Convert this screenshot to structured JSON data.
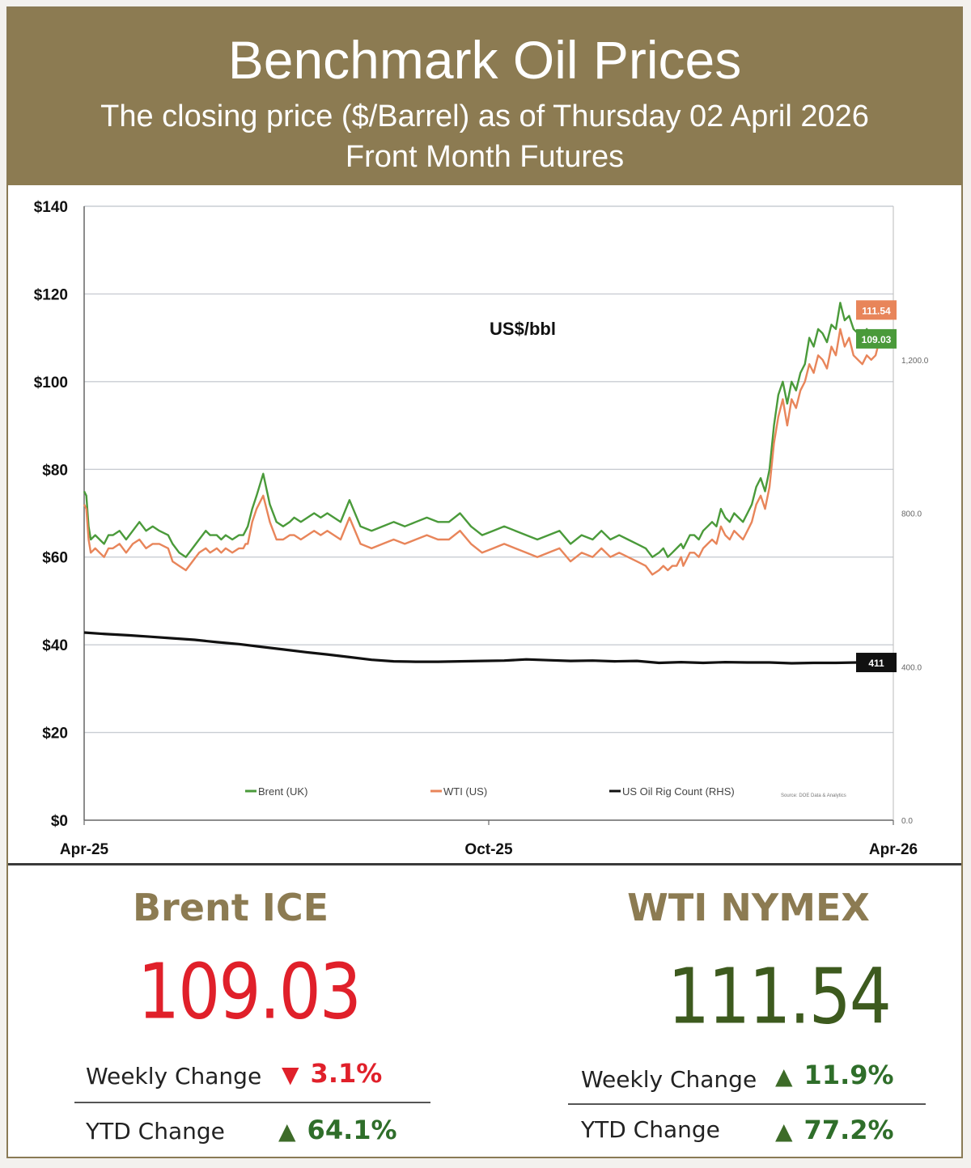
{
  "header": {
    "title": "Benchmark Oil Prices",
    "subtitle": "The closing price ($/Barrel) as of Thursday 02 April 2026",
    "subtitle2": "Front Month  Futures"
  },
  "colors": {
    "header_bg": "#8c7b52",
    "brent": "#4a9a3a",
    "wti": "#e8855a",
    "rig": "#111111",
    "down": "#e0202a",
    "up_price": "#3d5a1e",
    "up_arrow": "#3d6b28",
    "up_text": "#2f6e2a"
  },
  "chart_data": {
    "type": "line",
    "unit_label": "US$/bbl",
    "x_labels": [
      "Apr-25",
      "Oct-25",
      "Apr-26"
    ],
    "y_ticks": [
      "$0",
      "$20",
      "$40",
      "$60",
      "$80",
      "$100",
      "$120",
      "$140"
    ],
    "y_ticks_values": [
      0,
      20,
      40,
      60,
      80,
      100,
      120,
      140
    ],
    "ylim": [
      0,
      140
    ],
    "rhs_ticks": [
      "0.0",
      "400.0",
      "800.0",
      "1,200.0"
    ],
    "rhs_ticks_values": [
      0,
      400,
      800,
      1200
    ],
    "rhs_lim": [
      0,
      1600
    ],
    "grid": true,
    "legend_position": "bottom",
    "source_note": "Source: DOE Data & Analytics",
    "series": [
      {
        "name": "Brent (UK)",
        "axis": "left",
        "end_label": "109.03",
        "x": [
          0,
          1,
          2,
          3,
          5,
          7,
          9,
          11,
          13,
          16,
          19,
          22,
          25,
          28,
          31,
          34,
          38,
          40,
          43,
          46,
          49,
          52,
          55,
          57,
          60,
          62,
          64,
          67,
          70,
          72,
          73,
          74,
          76,
          78,
          81,
          84,
          87,
          90,
          93,
          95,
          98,
          101,
          104,
          107,
          110,
          113,
          116,
          120,
          125,
          130,
          135,
          140,
          145,
          150,
          155,
          160,
          165,
          170,
          175,
          180,
          185,
          190,
          195,
          200,
          205,
          210,
          215,
          220,
          225,
          230,
          234,
          238,
          242,
          246,
          250,
          254,
          257,
          260,
          262,
          264,
          266,
          268,
          270,
          271,
          272,
          273,
          274,
          276,
          278,
          280,
          282,
          284,
          286,
          288,
          290,
          292,
          294,
          296,
          298,
          300,
          302,
          304,
          306,
          308,
          310,
          312,
          314,
          316,
          318,
          320,
          322,
          324,
          326,
          328,
          330,
          332,
          334,
          336,
          338,
          340,
          342,
          344,
          346,
          348,
          350,
          352,
          354,
          356,
          358,
          360,
          362,
          364,
          366
        ],
        "y": [
          75,
          74,
          67,
          64,
          65,
          64,
          63,
          65,
          65,
          66,
          64,
          66,
          68,
          66,
          67,
          66,
          65,
          63,
          61,
          60,
          62,
          64,
          66,
          65,
          65,
          64,
          65,
          64,
          65,
          65,
          66,
          67,
          71,
          74,
          79,
          72,
          68,
          67,
          68,
          69,
          68,
          69,
          70,
          69,
          70,
          69,
          68,
          73,
          67,
          66,
          67,
          68,
          67,
          68,
          69,
          68,
          68,
          70,
          67,
          65,
          66,
          67,
          66,
          65,
          64,
          65,
          66,
          63,
          65,
          64,
          66,
          64,
          65,
          64,
          63,
          62,
          60,
          61,
          62,
          60,
          61,
          62,
          63,
          62,
          63,
          64,
          65,
          65,
          64,
          66,
          67,
          68,
          67,
          71,
          69,
          68,
          70,
          69,
          68,
          70,
          72,
          76,
          78,
          75,
          80,
          90,
          97,
          100,
          95,
          100,
          98,
          102,
          104,
          110,
          108,
          112,
          111,
          109,
          113,
          112,
          118,
          114,
          115,
          112,
          111,
          110,
          112,
          110,
          111,
          109,
          110,
          109,
          109.03
        ]
      },
      {
        "name": "WTI (US)",
        "axis": "left",
        "end_label": "111.54",
        "x": [
          0,
          1,
          2,
          3,
          5,
          7,
          9,
          11,
          13,
          16,
          19,
          22,
          25,
          28,
          31,
          34,
          38,
          40,
          43,
          46,
          49,
          52,
          55,
          57,
          60,
          62,
          64,
          67,
          70,
          72,
          73,
          74,
          76,
          78,
          81,
          84,
          87,
          90,
          93,
          95,
          98,
          101,
          104,
          107,
          110,
          113,
          116,
          120,
          125,
          130,
          135,
          140,
          145,
          150,
          155,
          160,
          165,
          170,
          175,
          180,
          185,
          190,
          195,
          200,
          205,
          210,
          215,
          220,
          225,
          230,
          234,
          238,
          242,
          246,
          250,
          254,
          257,
          260,
          262,
          264,
          266,
          268,
          270,
          271,
          272,
          273,
          274,
          276,
          278,
          280,
          282,
          284,
          286,
          288,
          290,
          292,
          294,
          296,
          298,
          300,
          302,
          304,
          306,
          308,
          310,
          312,
          314,
          316,
          318,
          320,
          322,
          324,
          326,
          328,
          330,
          332,
          334,
          336,
          338,
          340,
          342,
          344,
          346,
          348,
          350,
          352,
          354,
          356,
          358,
          360,
          362,
          364,
          366
        ],
        "y": [
          72,
          71,
          64,
          61,
          62,
          61,
          60,
          62,
          62,
          63,
          61,
          63,
          64,
          62,
          63,
          63,
          62,
          59,
          58,
          57,
          59,
          61,
          62,
          61,
          62,
          61,
          62,
          61,
          62,
          62,
          63,
          63,
          68,
          71,
          74,
          68,
          64,
          64,
          65,
          65,
          64,
          65,
          66,
          65,
          66,
          65,
          64,
          69,
          63,
          62,
          63,
          64,
          63,
          64,
          65,
          64,
          64,
          66,
          63,
          61,
          62,
          63,
          62,
          61,
          60,
          61,
          62,
          59,
          61,
          60,
          62,
          60,
          61,
          60,
          59,
          58,
          56,
          57,
          58,
          57,
          58,
          58,
          60,
          58,
          59,
          60,
          61,
          61,
          60,
          62,
          63,
          64,
          63,
          67,
          65,
          64,
          66,
          65,
          64,
          66,
          68,
          72,
          74,
          71,
          76,
          86,
          92,
          96,
          90,
          96,
          94,
          98,
          100,
          104,
          102,
          106,
          105,
          103,
          108,
          106,
          112,
          108,
          110,
          106,
          105,
          104,
          106,
          105,
          106,
          110,
          111,
          111.54,
          111.54
        ]
      },
      {
        "name": "US Oil Rig Count (RHS)",
        "axis": "right",
        "end_label": "411",
        "x": [
          0,
          10,
          20,
          30,
          40,
          50,
          60,
          70,
          80,
          90,
          100,
          110,
          120,
          130,
          140,
          150,
          160,
          170,
          180,
          190,
          200,
          210,
          220,
          230,
          240,
          250,
          260,
          270,
          280,
          290,
          300,
          310,
          320,
          330,
          340,
          350,
          360,
          366
        ],
        "y": [
          489,
          485,
          482,
          478,
          474,
          470,
          464,
          459,
          452,
          445,
          438,
          432,
          425,
          418,
          414,
          413,
          413,
          414,
          415,
          416,
          419,
          417,
          415,
          416,
          414,
          415,
          410,
          412,
          410,
          412,
          411,
          411,
          409,
          410,
          410,
          411,
          411,
          411
        ]
      }
    ]
  },
  "brent": {
    "name": "Brent ICE",
    "price": "109.03",
    "weekly_label": "Weekly Change",
    "weekly_value": "3.1%",
    "weekly_dir": "▼",
    "ytd_label": "YTD Change",
    "ytd_value": "64.1%",
    "ytd_dir": "▲"
  },
  "wti": {
    "name": "WTI NYMEX",
    "price": "111.54",
    "weekly_label": "Weekly Change",
    "weekly_value": "11.9%",
    "weekly_dir": "▲",
    "ytd_label": "YTD Change",
    "ytd_value": "77.2%",
    "ytd_dir": "▲"
  }
}
